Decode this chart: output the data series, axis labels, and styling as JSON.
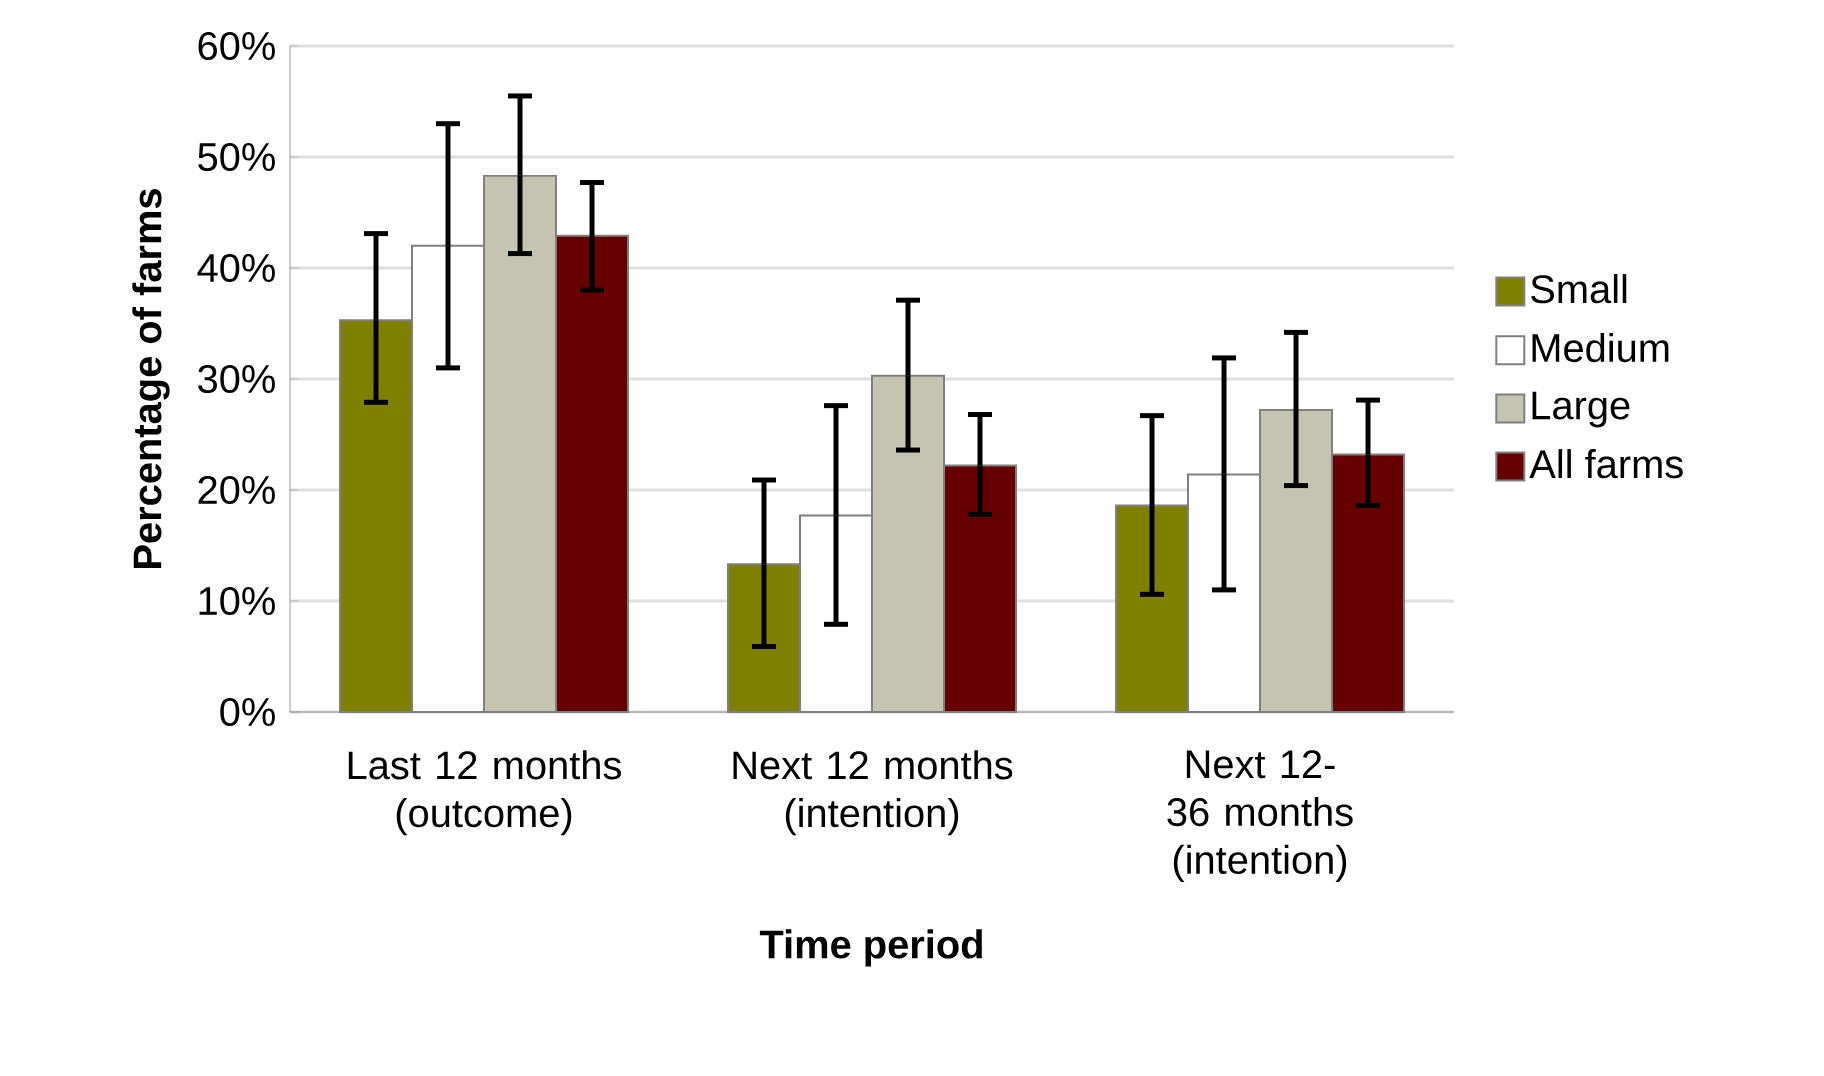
{
  "chart_data": {
    "type": "bar",
    "xlabel": "Time period",
    "ylabel": "Percentage of farms",
    "categories": [
      "Last 12 months (outcome)",
      "Next 12 months (intention)",
      "Next 12-36 months (intention)"
    ],
    "series": [
      {
        "name": "Small",
        "color": "#808000",
        "values": [
          35.3,
          13.3,
          18.6
        ],
        "errors": [
          [
            27.9,
            43.1
          ],
          [
            5.9,
            20.9
          ],
          [
            10.6,
            26.7
          ]
        ]
      },
      {
        "name": "Medium",
        "color": "#ffffff",
        "values": [
          42.0,
          17.7,
          21.4
        ],
        "errors": [
          [
            31.0,
            53.0
          ],
          [
            7.9,
            27.6
          ],
          [
            11.0,
            31.9
          ]
        ]
      },
      {
        "name": "Large",
        "color": "#c4c4b0",
        "values": [
          48.3,
          30.3,
          27.2
        ],
        "errors": [
          [
            41.3,
            55.5
          ],
          [
            23.6,
            37.1
          ],
          [
            20.4,
            34.2
          ]
        ]
      },
      {
        "name": "All farms",
        "color": "#660000",
        "values": [
          42.9,
          22.2,
          23.2
        ],
        "errors": [
          [
            38.0,
            47.7
          ],
          [
            17.8,
            26.8
          ],
          [
            18.6,
            28.1
          ]
        ]
      }
    ],
    "ylim": [
      0,
      60
    ],
    "yticks": [
      {
        "value": 0,
        "label": "0%"
      },
      {
        "value": 10,
        "label": "10%"
      },
      {
        "value": 20,
        "label": "20%"
      },
      {
        "value": 30,
        "label": "30%"
      },
      {
        "value": 40,
        "label": "40%"
      },
      {
        "value": 50,
        "label": "50%"
      },
      {
        "value": 60,
        "label": "60%"
      }
    ],
    "grid": "y",
    "legend": "right"
  }
}
